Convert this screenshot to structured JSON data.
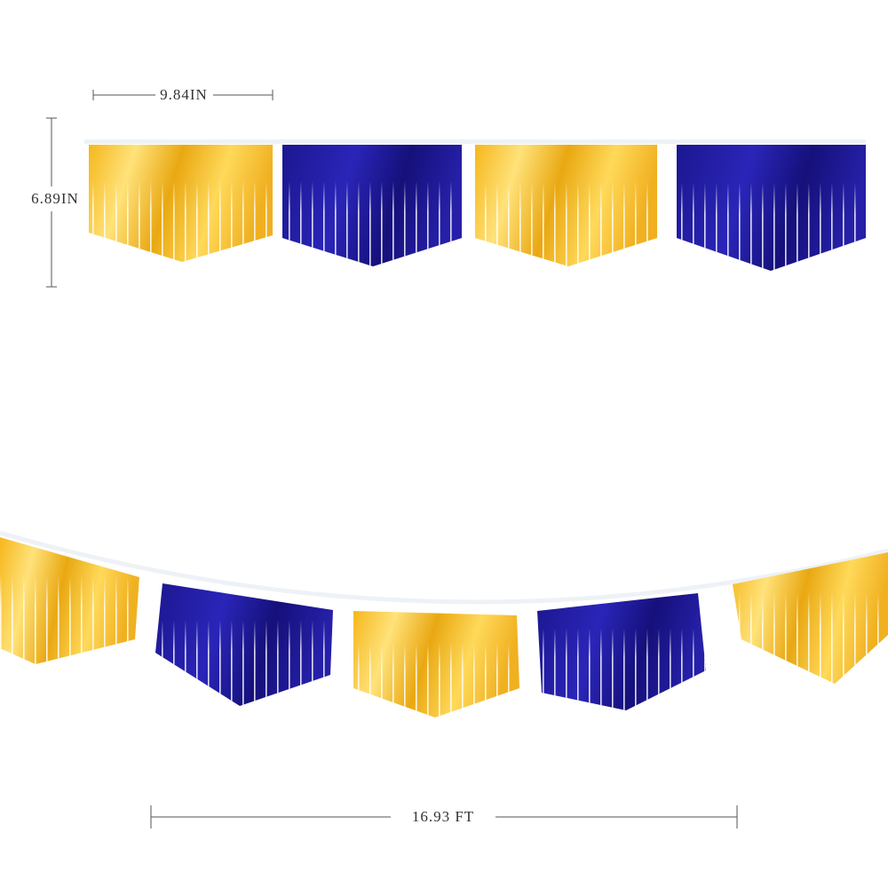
{
  "dimensions": {
    "pennant_width": "9.84IN",
    "pennant_height": "6.89IN",
    "total_length": "16.93 FT"
  }
}
